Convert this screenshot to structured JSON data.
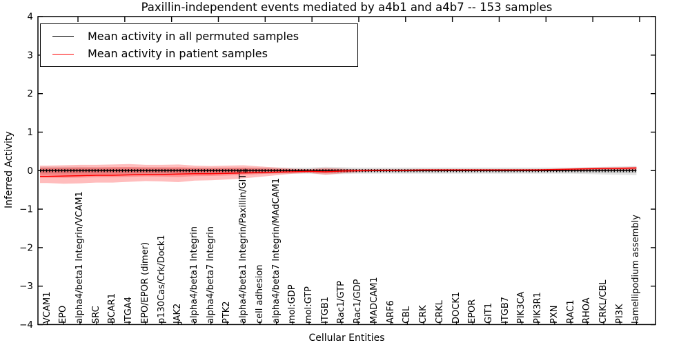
{
  "figure": {
    "title": "Paxillin-independent events mediated by a4b1 and a4b7 -- 153 samples"
  },
  "chart_data": {
    "type": "line",
    "title": "Paxillin-independent events mediated by a4b1 and a4b7 -- 153 samples",
    "xlabel": "Cellular Entities",
    "ylabel": "Inferred Activity",
    "ylim": [
      -4,
      4
    ],
    "yticks": [
      4,
      3,
      2,
      1,
      0,
      -1,
      -2,
      -3,
      -4
    ],
    "ytick_labels": [
      "4",
      "3",
      "2",
      "1",
      "0",
      "−1",
      "−2",
      "−3",
      "−4"
    ],
    "grid": false,
    "legend_position": "upper left",
    "categories": [
      "VCAM1",
      "EPO",
      "alpha4/beta1 Integrin/VCAM1",
      "SRC",
      "BCAR1",
      "ITGA4",
      "EPO/EPOR (dimer)",
      "p130Cas/Crk/Dock1",
      "JAK2",
      "alpha4/beta1 Integrin",
      "alpha4/beta7 Integrin",
      "PTK2",
      "alpha4/beta1 Integrin/Paxillin/GIT1",
      "cell adhesion",
      "alpha4/beta7 Integrin/MAdCAM1",
      "mol:GDP",
      "mol:GTP",
      "ITGB1",
      "Rac1/GTP",
      "Rac1/GDP",
      "MADCAM1",
      "ARF6",
      "CBL",
      "CRK",
      "CRKL",
      "DOCK1",
      "EPOR",
      "GIT1",
      "ITGB7",
      "PIK3CA",
      "PIK3R1",
      "PXN",
      "RAC1",
      "RHOA",
      "CRKL/CBL",
      "PI3K",
      "lamellipodium assembly"
    ],
    "series": [
      {
        "name": "Mean activity in all permuted samples",
        "color": "#000000",
        "values": [
          0,
          0,
          0,
          0,
          0,
          0,
          0,
          0,
          0,
          0,
          0,
          0,
          0,
          0,
          0,
          0,
          0,
          0,
          0,
          0,
          0,
          0,
          0,
          0,
          0,
          0,
          0,
          0,
          0,
          0,
          0,
          0,
          0,
          0,
          0,
          0,
          0
        ],
        "band_upper": [
          0.1,
          0.1,
          0.1,
          0.09,
          0.09,
          0.09,
          0.09,
          0.09,
          0.08,
          0.08,
          0.08,
          0.08,
          0.08,
          0.08,
          0.08,
          0.08,
          0.08,
          0.1,
          0.09,
          0.08,
          0.08,
          0.08,
          0.08,
          0.08,
          0.08,
          0.08,
          0.08,
          0.08,
          0.08,
          0.08,
          0.08,
          0.08,
          0.08,
          0.09,
          0.1,
          0.11,
          0.12
        ],
        "band_lower": [
          -0.1,
          -0.1,
          -0.1,
          -0.09,
          -0.09,
          -0.09,
          -0.09,
          -0.09,
          -0.08,
          -0.08,
          -0.08,
          -0.08,
          -0.08,
          -0.08,
          -0.08,
          -0.08,
          -0.08,
          -0.1,
          -0.09,
          -0.08,
          -0.08,
          -0.08,
          -0.08,
          -0.08,
          -0.08,
          -0.08,
          -0.08,
          -0.08,
          -0.08,
          -0.08,
          -0.08,
          -0.08,
          -0.08,
          -0.09,
          -0.1,
          -0.11,
          -0.12
        ]
      },
      {
        "name": "Mean activity in patient samples",
        "color": "#ff0000",
        "values": [
          -0.15,
          -0.14,
          -0.13,
          -0.12,
          -0.12,
          -0.11,
          -0.1,
          -0.1,
          -0.09,
          -0.08,
          -0.08,
          -0.07,
          -0.06,
          -0.05,
          -0.04,
          -0.03,
          -0.02,
          -0.03,
          -0.01,
          0.0,
          0.01,
          0.01,
          0.01,
          0.02,
          0.02,
          0.02,
          0.02,
          0.02,
          0.02,
          0.02,
          0.02,
          0.03,
          0.04,
          0.05,
          0.06,
          0.06,
          0.07
        ],
        "band_upper": [
          0.13,
          0.14,
          0.15,
          0.15,
          0.16,
          0.17,
          0.15,
          0.15,
          0.16,
          0.13,
          0.12,
          0.13,
          0.14,
          0.11,
          0.08,
          0.05,
          0.04,
          0.07,
          0.05,
          0.03,
          0.03,
          0.03,
          0.03,
          0.03,
          0.03,
          0.03,
          0.03,
          0.03,
          0.03,
          0.03,
          0.04,
          0.05,
          0.06,
          0.07,
          0.08,
          0.09,
          0.1
        ],
        "band_lower": [
          -0.32,
          -0.34,
          -0.33,
          -0.31,
          -0.31,
          -0.29,
          -0.27,
          -0.28,
          -0.3,
          -0.26,
          -0.25,
          -0.23,
          -0.2,
          -0.16,
          -0.12,
          -0.08,
          -0.06,
          -0.11,
          -0.07,
          -0.04,
          -0.02,
          -0.02,
          -0.02,
          -0.01,
          -0.01,
          -0.01,
          -0.01,
          -0.01,
          -0.01,
          -0.01,
          0.0,
          0.0,
          0.01,
          0.02,
          0.03,
          0.03,
          0.03
        ]
      }
    ]
  }
}
